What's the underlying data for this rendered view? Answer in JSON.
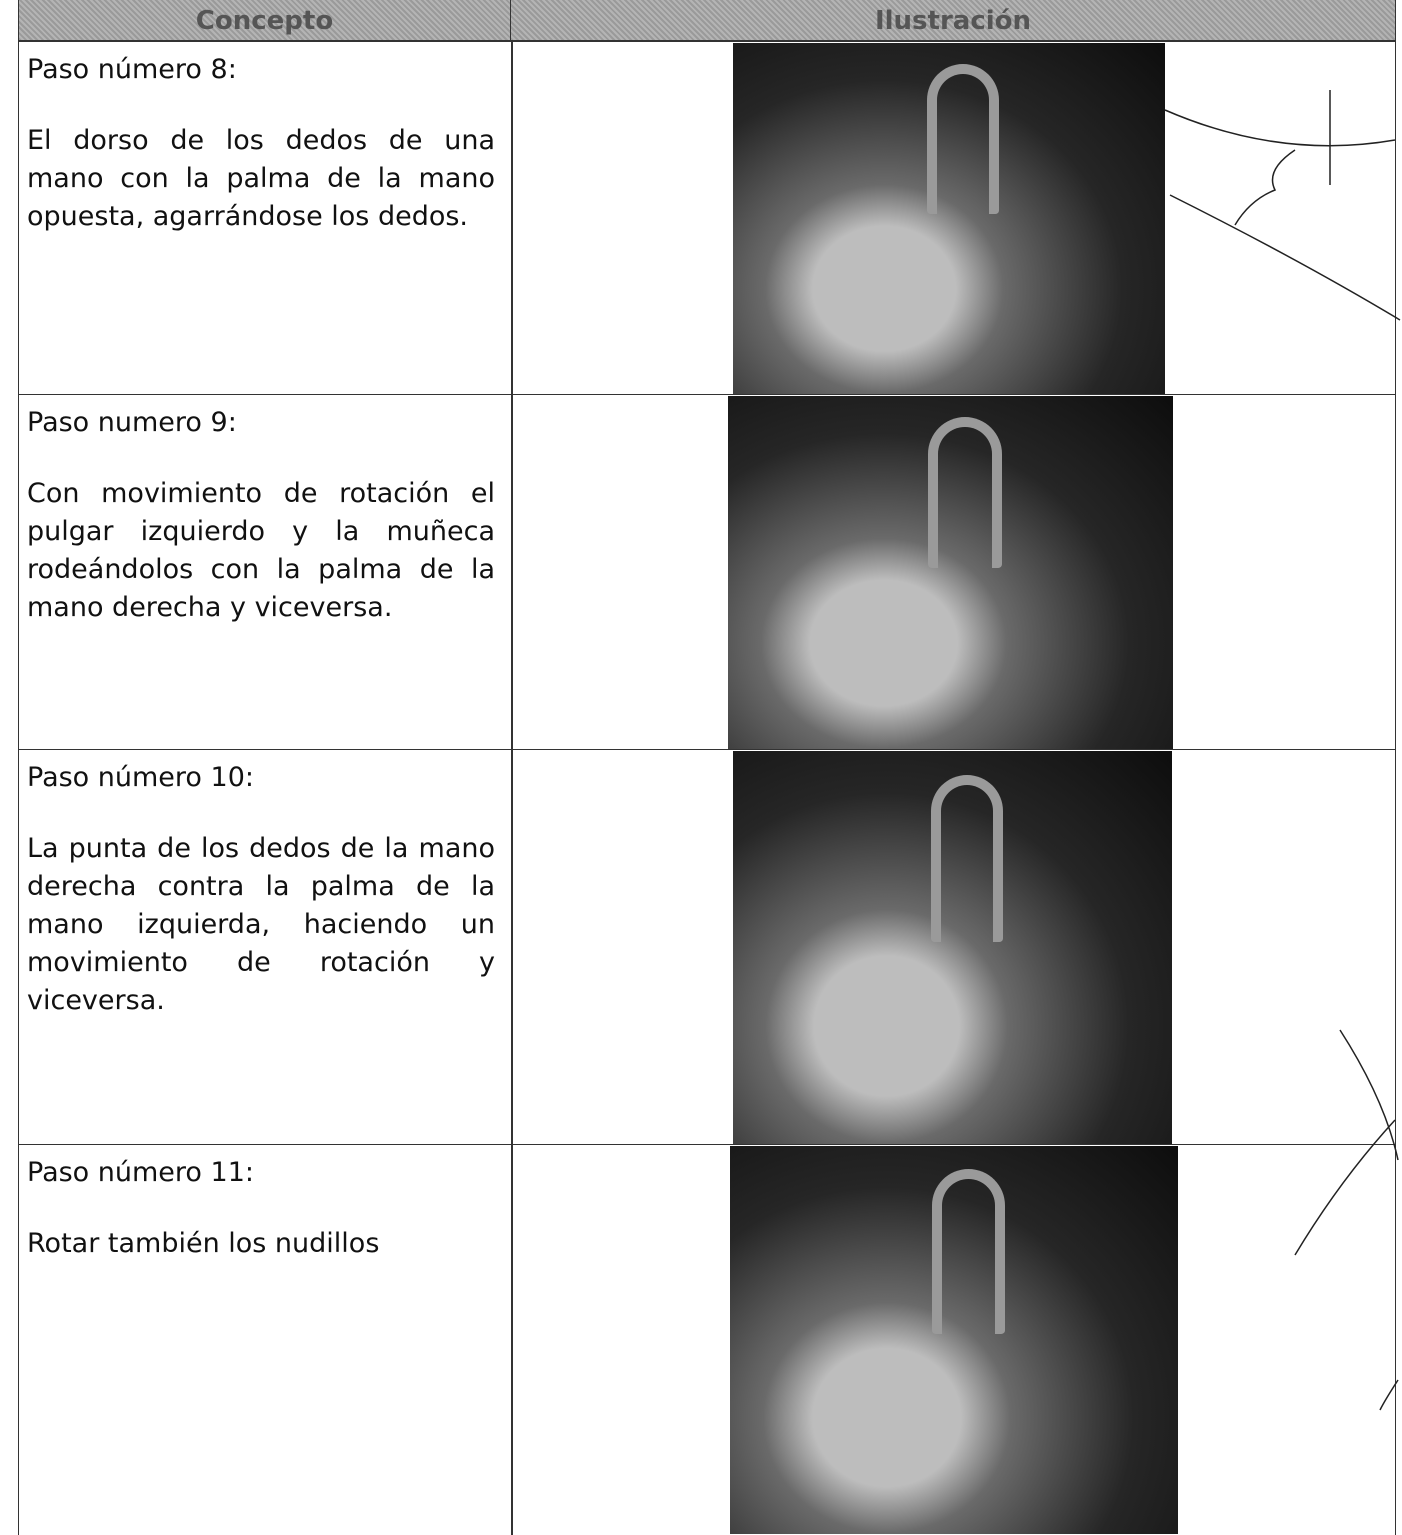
{
  "table": {
    "header": [
      "Concepto",
      "Ilustración"
    ],
    "rows": [
      {
        "step": "Paso número 8:",
        "description": "El dorso de los dedos de una mano con la palma de la mano opuesta, agarrándose los dedos."
      },
      {
        "step": "Paso numero 9:",
        "description": "Con movimiento de rotación el pulgar izquierdo y la muñeca rodeándolos con la palma de la mano derecha y viceversa."
      },
      {
        "step": "Paso número 10:",
        "description": "La punta de los dedos de la mano derecha contra la palma de la mano izquierda, haciendo un movimiento de rotación y viceversa."
      },
      {
        "step": "Paso número 11:",
        "description": "Rotar también los nudillos"
      }
    ]
  }
}
